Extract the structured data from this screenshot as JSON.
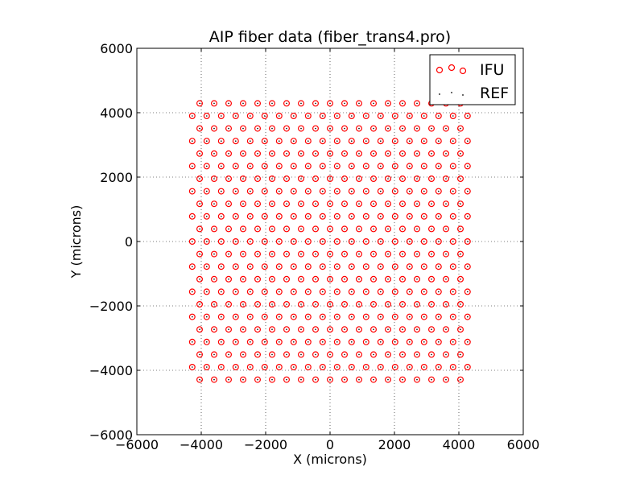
{
  "chart_data": {
    "type": "scatter",
    "title": "AIP fiber data (fiber_trans4.pro)",
    "xlabel": "X (microns)",
    "ylabel": "Y (microns)",
    "xlim": [
      -6000,
      6000
    ],
    "ylim": [
      -6000,
      6000
    ],
    "xticks": [
      -6000,
      -4000,
      -2000,
      0,
      2000,
      4000,
      6000
    ],
    "yticks": [
      -6000,
      -4000,
      -2000,
      0,
      2000,
      4000,
      6000
    ],
    "xtick_labels": [
      "−6000",
      "−4000",
      "−2000",
      "0",
      "2000",
      "4000",
      "6000"
    ],
    "ytick_labels": [
      "−6000",
      "−4000",
      "−2000",
      "0",
      "2000",
      "4000",
      "6000"
    ],
    "grid": true,
    "legend_position": "upper right",
    "series": [
      {
        "name": "IFU",
        "marker": "open-circle",
        "color": "#ff0000",
        "rows_description": "hexagonal grid",
        "rows": [
          {
            "y": 4290,
            "x_start": -4050,
            "x_step": 450,
            "count": 19
          },
          {
            "y": 3900,
            "x_start": -4280,
            "x_step": 450,
            "count": 20
          },
          {
            "y": 3510,
            "x_start": -4050,
            "x_step": 450,
            "count": 19
          },
          {
            "y": 3120,
            "x_start": -4280,
            "x_step": 450,
            "count": 20
          },
          {
            "y": 2730,
            "x_start": -4050,
            "x_step": 450,
            "count": 19
          },
          {
            "y": 2340,
            "x_start": -4280,
            "x_step": 450,
            "count": 20
          },
          {
            "y": 1950,
            "x_start": -4050,
            "x_step": 450,
            "count": 19
          },
          {
            "y": 1560,
            "x_start": -4280,
            "x_step": 450,
            "count": 20
          },
          {
            "y": 1170,
            "x_start": -4050,
            "x_step": 450,
            "count": 19
          },
          {
            "y": 780,
            "x_start": -4280,
            "x_step": 450,
            "count": 20
          },
          {
            "y": 390,
            "x_start": -4050,
            "x_step": 450,
            "count": 19
          },
          {
            "y": 0,
            "x_start": -4280,
            "x_step": 450,
            "count": 20
          },
          {
            "y": -390,
            "x_start": -4050,
            "x_step": 450,
            "count": 19
          },
          {
            "y": -780,
            "x_start": -4280,
            "x_step": 450,
            "count": 20
          },
          {
            "y": -1170,
            "x_start": -4050,
            "x_step": 450,
            "count": 19
          },
          {
            "y": -1560,
            "x_start": -4280,
            "x_step": 450,
            "count": 20
          },
          {
            "y": -1950,
            "x_start": -4050,
            "x_step": 450,
            "count": 19
          },
          {
            "y": -2340,
            "x_start": -4280,
            "x_step": 450,
            "count": 20
          },
          {
            "y": -2730,
            "x_start": -4050,
            "x_step": 450,
            "count": 19
          },
          {
            "y": -3120,
            "x_start": -4280,
            "x_step": 450,
            "count": 20
          },
          {
            "y": -3510,
            "x_start": -4050,
            "x_step": 450,
            "count": 19
          },
          {
            "y": -3900,
            "x_start": -4280,
            "x_step": 450,
            "count": 20
          },
          {
            "y": -4290,
            "x_start": -4050,
            "x_step": 450,
            "count": 19
          }
        ]
      },
      {
        "name": "REF",
        "marker": "dot",
        "color": "#000000",
        "note": "reference points coincide with IFU fiber centers"
      }
    ]
  }
}
